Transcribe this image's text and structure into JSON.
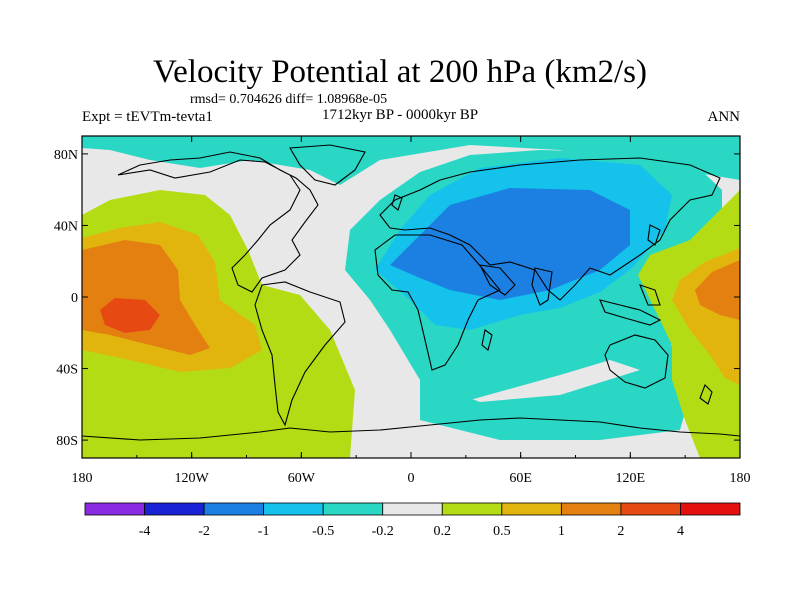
{
  "map": {
    "title": "Velocity Potential at 200 hPa (km2/s)",
    "stats_text": "rmsd= 0.704626  diff= 1.08968e-05",
    "experiment_label": "Expt = tEVTm-tevta1",
    "period_label": "1712kyr BP - 0000kyr BP",
    "season_label": "ANN",
    "projection": "cylindrical equidistant",
    "lon_range": [
      -180,
      180
    ],
    "lat_range": [
      -90,
      90
    ],
    "lon_ticks": [
      "180",
      "120W",
      "60W",
      "0",
      "60E",
      "120E",
      "180"
    ],
    "lat_ticks": [
      "80N",
      "40N",
      "0",
      "40S",
      "80S"
    ],
    "fields": [
      {
        "name": "east-pacific-positive-anomaly",
        "peak_value": 4
      },
      {
        "name": "africa-asia-negative-anomaly",
        "peak_value": -2
      },
      {
        "name": "west-pacific-positive-anomaly",
        "peak_value": 2
      }
    ]
  },
  "colorbar": {
    "levels": [
      "-4",
      "-2",
      "-1",
      "-0.5",
      "-0.2",
      "0.2",
      "0.5",
      "1",
      "2",
      "4"
    ],
    "colors": [
      "#8a2be2",
      "#1a22d6",
      "#1c7fe2",
      "#14c2ec",
      "#2ad6c4",
      "#e8e8e8",
      "#b4dc14",
      "#e2b40e",
      "#e48010",
      "#e64a12",
      "#e41010"
    ]
  }
}
